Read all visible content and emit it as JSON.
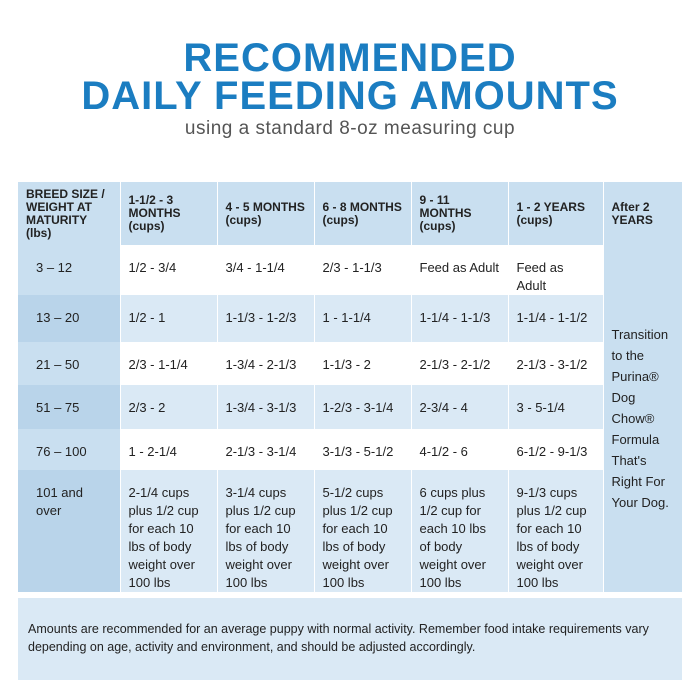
{
  "header": {
    "title_line1": "RECOMMENDED",
    "title_line2": "DAILY FEEDING AMOUNTS",
    "subtitle": "using a standard 8-oz measuring cup"
  },
  "table": {
    "columns": [
      "BREED SIZE / WEIGHT AT MATURITY (lbs)",
      "1-1/2 - 3 MONTHS (cups)",
      "4 - 5 MONTHS (cups)",
      "6 - 8 MONTHS (cups)",
      "9 - 11 MONTHS (cups)",
      "1 - 2 YEARS (cups)",
      "After 2 YEARS"
    ],
    "rows": [
      [
        "3 – 12",
        "1/2 - 3/4",
        "3/4 - 1-1/4",
        "2/3 - 1-1/3",
        "Feed as Adult",
        "Feed as Adult"
      ],
      [
        "13 – 20",
        "1/2 - 1",
        "1-1/3 - 1-2/3",
        "1 - 1-1/4",
        "1-1/4 - 1-1/3",
        "1-1/4 - 1-1/2"
      ],
      [
        "21 – 50",
        "2/3 - 1-1/4",
        "1-3/4 - 2-1/3",
        "1-1/3 - 2",
        "2-1/3 - 2-1/2",
        "2-1/3 - 3-1/2"
      ],
      [
        "51 – 75",
        "2/3 - 2",
        "1-3/4 - 3-1/3",
        "1-2/3 - 3-1/4",
        "2-3/4 - 4",
        "3 - 5-1/4"
      ],
      [
        "76 – 100",
        "1 - 2-1/4",
        "2-1/3 - 3-1/4",
        "3-1/3 - 5-1/2",
        "4-1/2 - 6",
        "6-1/2 - 9-1/3"
      ],
      [
        "101 and over",
        "2-1/4 cups plus 1/2 cup for each 10 lbs of body weight over 100 lbs",
        "3-1/4 cups plus 1/2 cup for each 10 lbs of body weight over 100 lbs",
        "5-1/2 cups plus 1/2 cup for each 10 lbs of body weight over 100 lbs",
        "6 cups plus 1/2 cup for each 10 lbs of body weight over 100 lbs",
        "9-1/3 cups plus 1/2 cup for each 10 lbs of body weight over 100 lbs"
      ]
    ],
    "after_note": "Transition to the Purina® Dog Chow® Formula That's Right For Your Dog."
  },
  "footnote": "Amounts are recommended for an average puppy with normal activity. Remember food intake requirements vary depending on age, activity and environment, and should be adjusted accordingly."
}
